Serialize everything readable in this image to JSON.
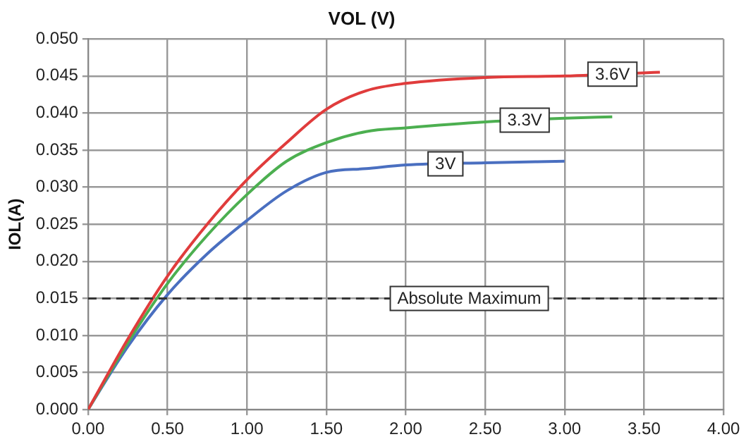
{
  "chart_data": {
    "type": "line",
    "title": "VOL (V)",
    "ylabel": "IOL(A)",
    "xlim": [
      0,
      4
    ],
    "ylim": [
      0,
      0.05
    ],
    "xticks": [
      {
        "value": 0,
        "label": "0.00"
      },
      {
        "value": 0.5,
        "label": "0.50"
      },
      {
        "value": 1,
        "label": "1.00"
      },
      {
        "value": 1.5,
        "label": "1.50"
      },
      {
        "value": 2,
        "label": "2.00"
      },
      {
        "value": 2.5,
        "label": "2.50"
      },
      {
        "value": 3,
        "label": "3.00"
      },
      {
        "value": 3.5,
        "label": "3.50"
      },
      {
        "value": 4,
        "label": "4.00"
      }
    ],
    "yticks": [
      {
        "value": 0,
        "label": "0.000"
      },
      {
        "value": 0.005,
        "label": "0.005"
      },
      {
        "value": 0.01,
        "label": "0.010"
      },
      {
        "value": 0.015,
        "label": "0.015"
      },
      {
        "value": 0.02,
        "label": "0.020"
      },
      {
        "value": 0.025,
        "label": "0.025"
      },
      {
        "value": 0.03,
        "label": "0.030"
      },
      {
        "value": 0.035,
        "label": "0.035"
      },
      {
        "value": 0.04,
        "label": "0.040"
      },
      {
        "value": 0.045,
        "label": "0.045"
      },
      {
        "value": 0.05,
        "label": "0.050"
      }
    ],
    "grid": true,
    "legend": false,
    "marker": "none",
    "line_style": "solid",
    "series": [
      {
        "name": "3.6V",
        "color": "#e03c3c",
        "x": [
          0,
          0.25,
          0.5,
          0.75,
          1,
          1.25,
          1.5,
          1.75,
          2,
          2.5,
          3,
          3.6
        ],
        "values": [
          0,
          0.0095,
          0.018,
          0.025,
          0.031,
          0.036,
          0.0405,
          0.043,
          0.044,
          0.0448,
          0.045,
          0.0455
        ]
      },
      {
        "name": "3.3V",
        "color": "#4caf50",
        "x": [
          0,
          0.25,
          0.5,
          0.75,
          1,
          1.25,
          1.5,
          1.75,
          2,
          2.5,
          3,
          3.3
        ],
        "values": [
          0,
          0.009,
          0.017,
          0.0235,
          0.029,
          0.0335,
          0.036,
          0.0375,
          0.038,
          0.0388,
          0.0393,
          0.0395
        ]
      },
      {
        "name": "3V",
        "color": "#4a6fc0",
        "x": [
          0,
          0.25,
          0.5,
          0.75,
          1,
          1.25,
          1.5,
          1.75,
          2,
          2.5,
          3
        ],
        "values": [
          0,
          0.0085,
          0.0155,
          0.021,
          0.0255,
          0.0295,
          0.032,
          0.0325,
          0.033,
          0.0333,
          0.0335
        ]
      }
    ],
    "ref_lines": [
      {
        "axis": "y",
        "value": 0.015,
        "label": "Absolute Maximum",
        "color": "#333333",
        "line_style": "dashed"
      }
    ]
  }
}
